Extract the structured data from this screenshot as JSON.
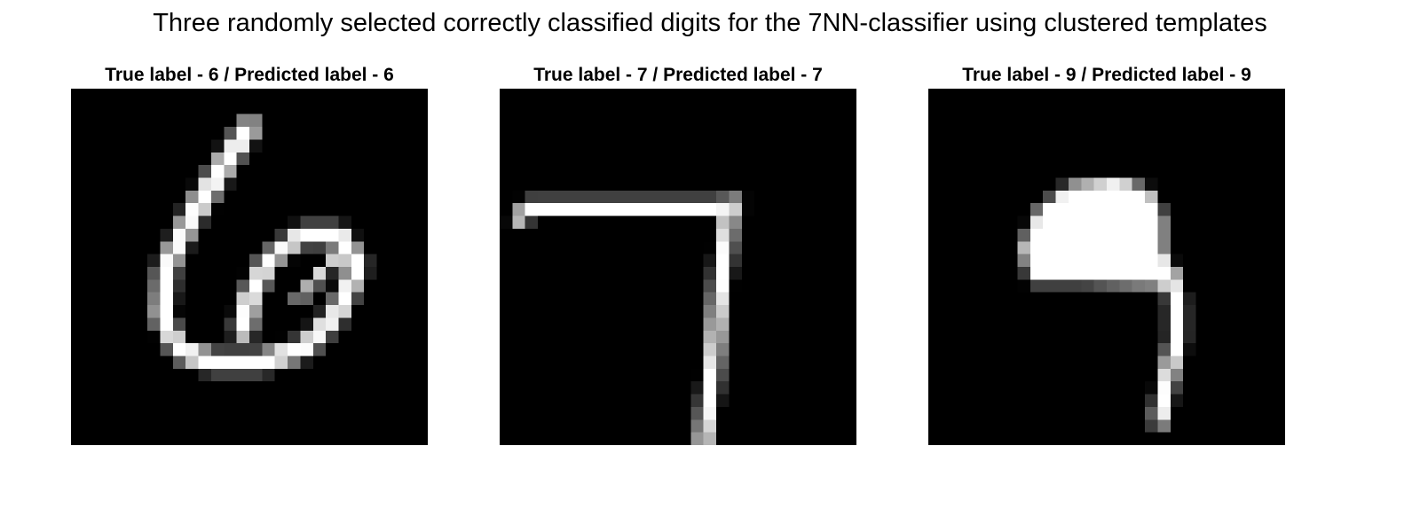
{
  "figure": {
    "title": "Three randomly selected correctly classified digits for the 7NN-classifier using clustered templates"
  },
  "panels": [
    {
      "title": "True label - 6 / Predicted label - 6",
      "digit": "6"
    },
    {
      "title": "True label - 7 / Predicted label - 7",
      "digit": "7"
    },
    {
      "title": "True label - 9 / Predicted label - 9",
      "digit": "9"
    }
  ],
  "colors": {
    "background": "#000000",
    "stroke": "#ffffff"
  }
}
